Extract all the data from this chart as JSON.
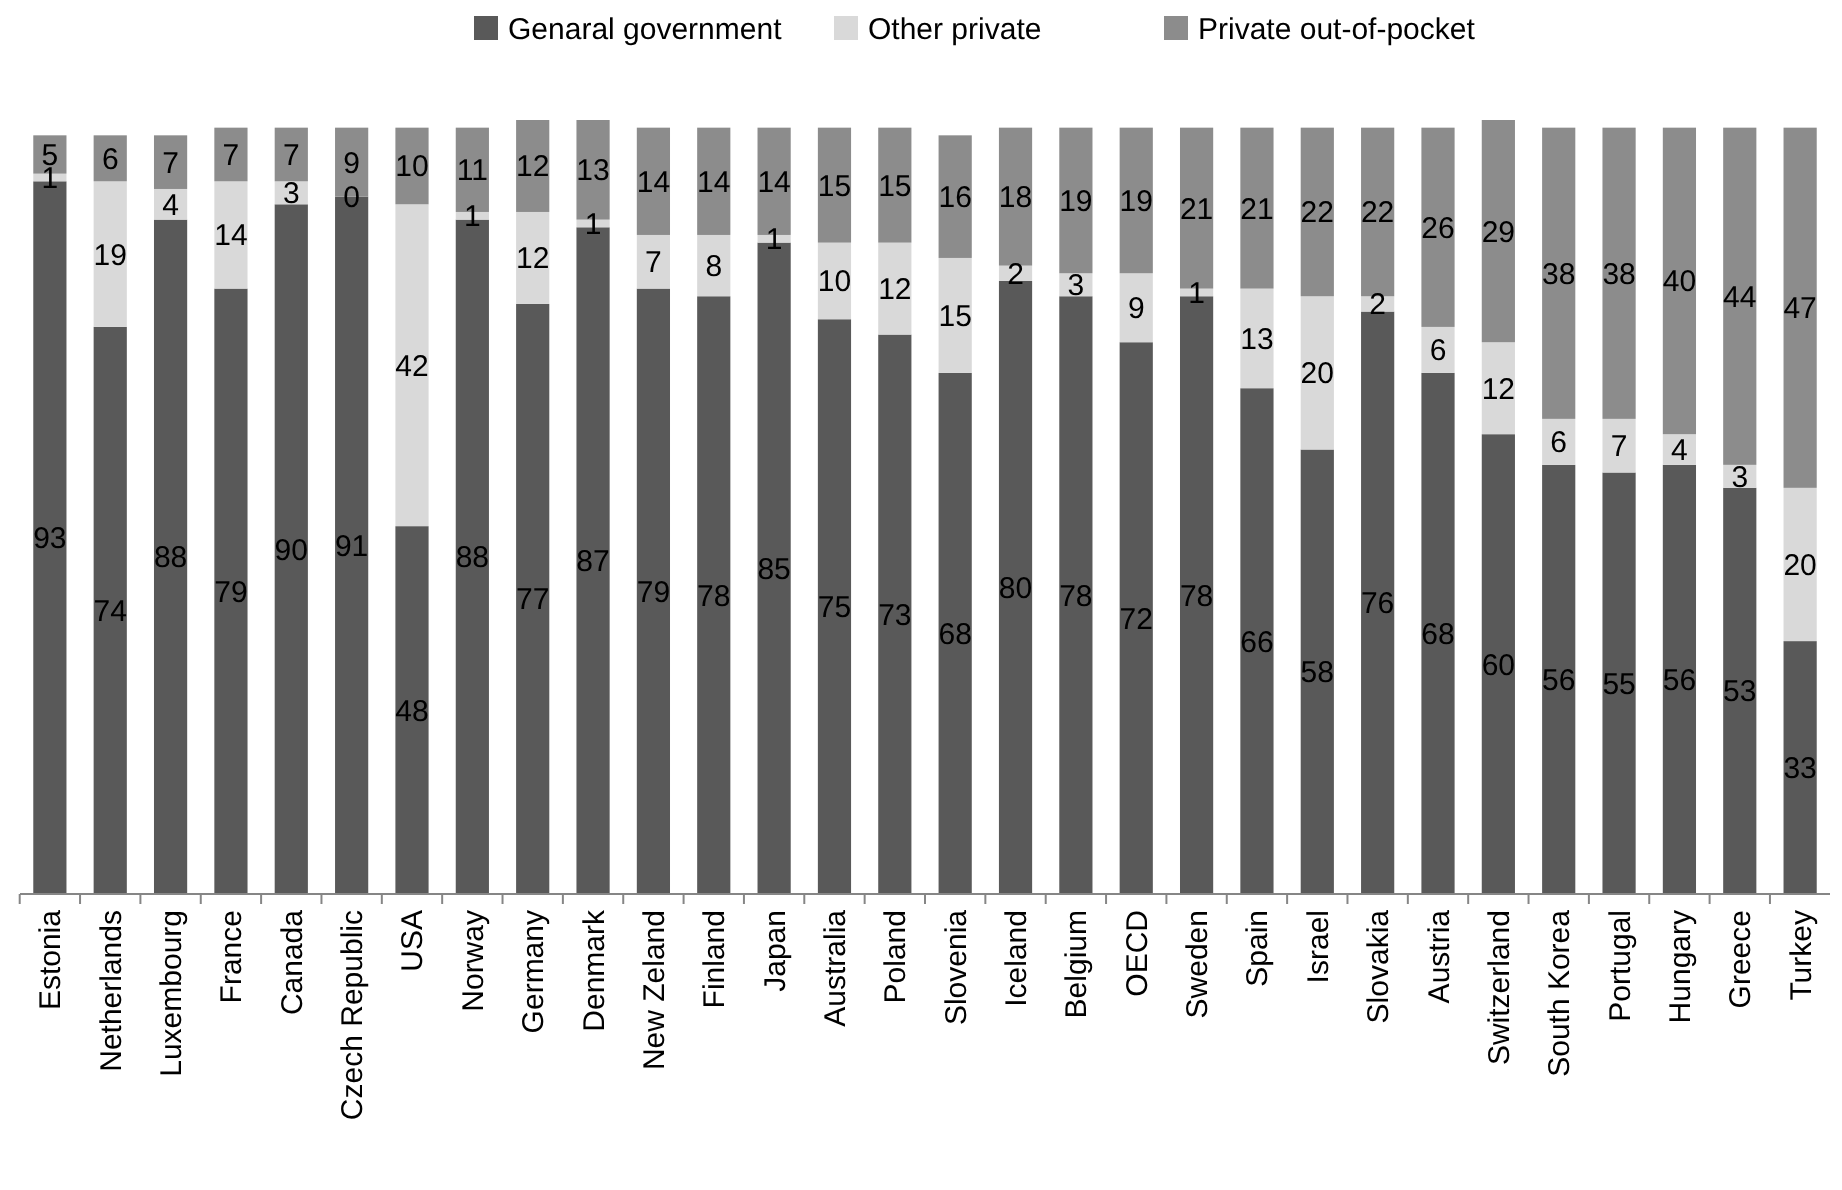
{
  "chart_data": {
    "type": "bar",
    "stacked": true,
    "data_labels": true,
    "legend": "top",
    "tick_labels": "x",
    "ylim": [
      0,
      101
    ],
    "categories": [
      "Estonia",
      "Netherlands",
      "Luxembourg",
      "France",
      "Canada",
      "Czech Republic",
      "USA",
      "Norway",
      "Germany",
      "Denmark",
      "New Zeland",
      "Finland",
      "Japan",
      "Australia",
      "Poland",
      "Slovenia",
      "Iceland",
      "Belgium",
      "OECD",
      "Sweden",
      "Spain",
      "Israel",
      "Slovakia",
      "Austria",
      "Switzerland",
      "South Korea",
      "Portugal",
      "Hungary",
      "Greece",
      "Turkey"
    ],
    "series": [
      {
        "name": "Genaral government",
        "color": "#595959",
        "values": [
          93,
          74,
          88,
          79,
          90,
          91,
          48,
          88,
          77,
          87,
          79,
          78,
          85,
          75,
          73,
          68,
          80,
          78,
          72,
          78,
          66,
          58,
          76,
          68,
          60,
          56,
          55,
          56,
          53,
          33
        ]
      },
      {
        "name": "Other private",
        "color": "#d9d9d9",
        "values": [
          1,
          19,
          4,
          14,
          3,
          0,
          42,
          1,
          12,
          1,
          7,
          8,
          1,
          10,
          12,
          15,
          2,
          3,
          9,
          1,
          13,
          20,
          2,
          6,
          12,
          6,
          7,
          4,
          3,
          20
        ]
      },
      {
        "name": "Private out-of-pocket",
        "color": "#8c8c8c",
        "values": [
          5,
          6,
          7,
          7,
          7,
          9,
          10,
          11,
          12,
          13,
          14,
          14,
          14,
          15,
          15,
          16,
          18,
          19,
          19,
          21,
          21,
          22,
          22,
          26,
          29,
          38,
          38,
          40,
          44,
          47
        ]
      }
    ]
  }
}
